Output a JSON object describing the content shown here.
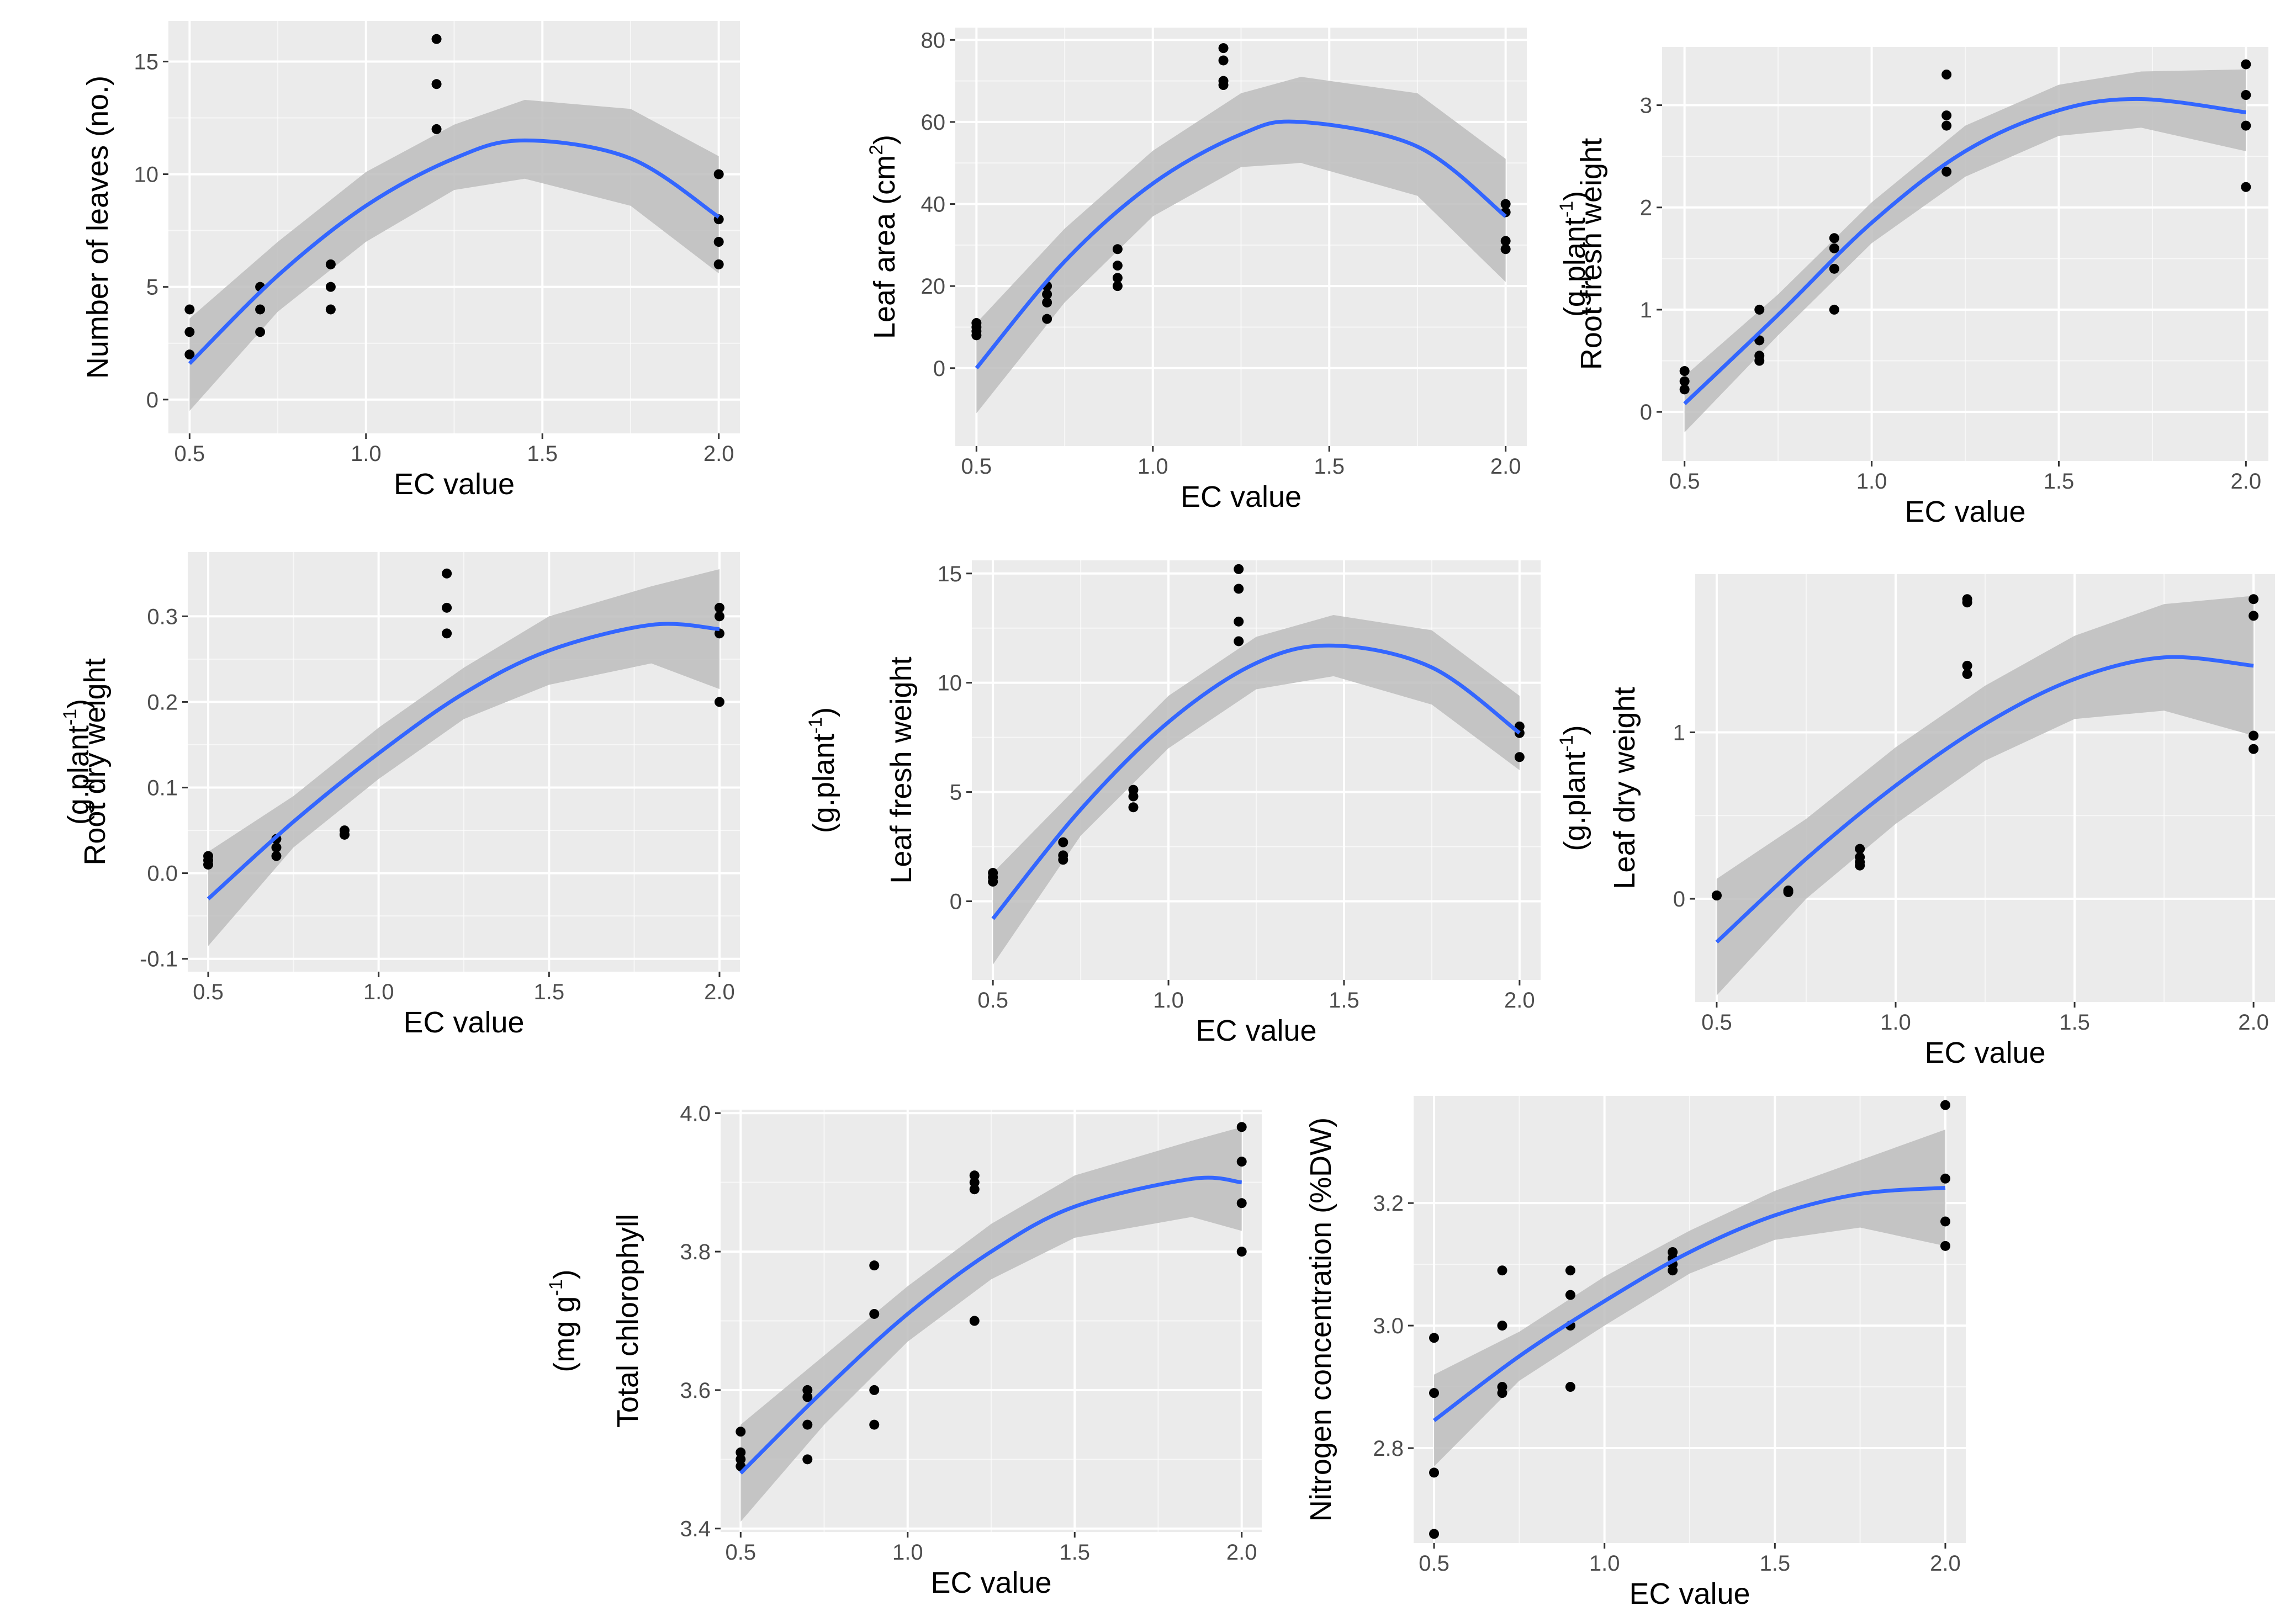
{
  "colors": {
    "panel": "#ebebeb",
    "grid_major": "#ffffff",
    "ribbon": "#bdbdbd",
    "fit_line": "#3366ff",
    "point": "#000000"
  },
  "chart_data": [
    {
      "type": "scatter",
      "id": "leaves",
      "fit": "quadratic-with-ci",
      "title": "",
      "xlabel": "EC value",
      "ylabel": "Number of leaves (no.)",
      "ylabel_unit": null,
      "xlim": [
        0.44,
        2.06
      ],
      "ylim": [
        -1.5,
        16.8
      ],
      "xticks": [
        0.5,
        1.0,
        1.5,
        2.0
      ],
      "xtick_labels": [
        "0.5",
        "1.0",
        "1.5",
        "2.0"
      ],
      "yticks": [
        0,
        5,
        10,
        15
      ],
      "ytick_labels": [
        "0",
        "5",
        "10",
        "15"
      ],
      "x": [
        0.5,
        0.5,
        0.5,
        0.7,
        0.7,
        0.7,
        0.9,
        0.9,
        0.9,
        1.2,
        1.2,
        1.2,
        2.0,
        2.0,
        2.0,
        2.0
      ],
      "y": [
        4,
        3,
        2,
        5,
        4,
        3,
        6,
        5,
        4,
        16,
        14,
        12,
        10,
        8,
        7,
        6
      ],
      "fit_points": [
        [
          0.5,
          1.6
        ],
        [
          0.75,
          5.5
        ],
        [
          1.0,
          8.6
        ],
        [
          1.25,
          10.7
        ],
        [
          1.45,
          11.5
        ],
        [
          1.75,
          10.7
        ],
        [
          2.0,
          8.1
        ]
      ],
      "ci_lower": [
        [
          0.5,
          -0.5
        ],
        [
          0.75,
          3.9
        ],
        [
          1.0,
          7.0
        ],
        [
          1.25,
          9.3
        ],
        [
          1.45,
          9.8
        ],
        [
          1.75,
          8.6
        ],
        [
          2.0,
          5.6
        ]
      ],
      "ci_upper": [
        [
          0.5,
          3.6
        ],
        [
          0.75,
          7.0
        ],
        [
          1.0,
          10.1
        ],
        [
          1.25,
          12.2
        ],
        [
          1.45,
          13.3
        ],
        [
          1.75,
          12.9
        ],
        [
          2.0,
          10.8
        ]
      ]
    },
    {
      "type": "scatter",
      "id": "leaf_area",
      "fit": "quadratic-with-ci",
      "title": "",
      "xlabel": "EC value",
      "ylabel": "Leaf area (cm",
      "ylabel_sup": "2",
      "ylabel_close": ")",
      "ylabel_unit": null,
      "xlim": [
        0.44,
        2.06
      ],
      "ylim": [
        -19,
        83
      ],
      "xticks": [
        0.5,
        1.0,
        1.5,
        2.0
      ],
      "xtick_labels": [
        "0.5",
        "1.0",
        "1.5",
        "2.0"
      ],
      "yticks": [
        0,
        20,
        40,
        60,
        80
      ],
      "ytick_labels": [
        "0",
        "20",
        "40",
        "60",
        "80"
      ],
      "x": [
        0.5,
        0.5,
        0.5,
        0.5,
        0.7,
        0.7,
        0.7,
        0.7,
        0.9,
        0.9,
        0.9,
        0.9,
        1.2,
        1.2,
        1.2,
        1.2,
        2.0,
        2.0,
        2.0,
        2.0
      ],
      "y": [
        11,
        10,
        9,
        8,
        20,
        18,
        16,
        12,
        29,
        25,
        22,
        20,
        78,
        75,
        70,
        69,
        40,
        38,
        31,
        29
      ],
      "fit_points": [
        [
          0.5,
          0
        ],
        [
          0.75,
          26
        ],
        [
          1.0,
          45
        ],
        [
          1.25,
          57
        ],
        [
          1.42,
          60
        ],
        [
          1.75,
          54
        ],
        [
          2.0,
          37
        ]
      ],
      "ci_lower": [
        [
          0.5,
          -11
        ],
        [
          0.75,
          16
        ],
        [
          1.0,
          37
        ],
        [
          1.25,
          49
        ],
        [
          1.42,
          50
        ],
        [
          1.75,
          42
        ],
        [
          2.0,
          21
        ]
      ],
      "ci_upper": [
        [
          0.5,
          11
        ],
        [
          0.75,
          34
        ],
        [
          1.0,
          53
        ],
        [
          1.25,
          67
        ],
        [
          1.42,
          71
        ],
        [
          1.75,
          67
        ],
        [
          2.0,
          51
        ]
      ]
    },
    {
      "type": "scatter",
      "id": "root_fresh",
      "fit": "quadratic-with-ci",
      "title": "",
      "xlabel": "EC value",
      "ylabel": "Root fresh weight",
      "ylabel_unit": "(g.plant",
      "ylabel_unit_sup": "-1",
      "ylabel_unit_close": ")",
      "xlim": [
        0.44,
        2.06
      ],
      "ylim": [
        -0.48,
        3.57
      ],
      "xticks": [
        0.5,
        1.0,
        1.5,
        2.0
      ],
      "xtick_labels": [
        "0.5",
        "1.0",
        "1.5",
        "2.0"
      ],
      "yticks": [
        0,
        1,
        2,
        3
      ],
      "ytick_labels": [
        "0",
        "1",
        "2",
        "3"
      ],
      "x": [
        0.5,
        0.5,
        0.5,
        0.7,
        0.7,
        0.7,
        0.7,
        0.9,
        0.9,
        0.9,
        0.9,
        1.2,
        1.2,
        1.2,
        1.2,
        2.0,
        2.0,
        2.0,
        2.0
      ],
      "y": [
        0.4,
        0.3,
        0.22,
        1.0,
        0.7,
        0.55,
        0.5,
        1.7,
        1.6,
        1.4,
        1.0,
        3.3,
        2.9,
        2.8,
        2.35,
        3.4,
        3.1,
        2.8,
        2.2
      ],
      "fit_points": [
        [
          0.5,
          0.08
        ],
        [
          0.75,
          0.95
        ],
        [
          1.0,
          1.85
        ],
        [
          1.25,
          2.55
        ],
        [
          1.5,
          2.95
        ],
        [
          1.72,
          3.06
        ],
        [
          2.0,
          2.93
        ]
      ],
      "ci_lower": [
        [
          0.5,
          -0.2
        ],
        [
          0.75,
          0.75
        ],
        [
          1.0,
          1.65
        ],
        [
          1.25,
          2.3
        ],
        [
          1.5,
          2.7
        ],
        [
          1.72,
          2.78
        ],
        [
          2.0,
          2.55
        ]
      ],
      "ci_upper": [
        [
          0.5,
          0.35
        ],
        [
          0.75,
          1.15
        ],
        [
          1.0,
          2.05
        ],
        [
          1.25,
          2.8
        ],
        [
          1.5,
          3.2
        ],
        [
          1.72,
          3.33
        ],
        [
          2.0,
          3.35
        ]
      ]
    },
    {
      "type": "scatter",
      "id": "root_dry",
      "fit": "quadratic-with-ci",
      "title": "",
      "xlabel": "EC value",
      "ylabel": "Root dry weight",
      "ylabel_unit": "(g.plant",
      "ylabel_unit_sup": "-1",
      "ylabel_unit_close": ")",
      "xlim": [
        0.44,
        2.06
      ],
      "ylim": [
        -0.115,
        0.375
      ],
      "xticks": [
        0.5,
        1.0,
        1.5,
        2.0
      ],
      "xtick_labels": [
        "0.5",
        "1.0",
        "1.5",
        "2.0"
      ],
      "yticks": [
        -0.1,
        0.0,
        0.1,
        0.2,
        0.3
      ],
      "ytick_labels": [
        "-0.1",
        "0.0",
        "0.1",
        "0.2",
        "0.3"
      ],
      "x": [
        0.5,
        0.5,
        0.5,
        0.7,
        0.7,
        0.7,
        0.9,
        0.9,
        0.9,
        1.2,
        1.2,
        1.2,
        2.0,
        2.0,
        2.0,
        2.0
      ],
      "y": [
        0.02,
        0.015,
        0.01,
        0.04,
        0.03,
        0.02,
        0.05,
        0.045,
        0.045,
        0.35,
        0.31,
        0.28,
        0.31,
        0.3,
        0.28,
        0.2
      ],
      "fit_points": [
        [
          0.5,
          -0.03
        ],
        [
          0.75,
          0.06
        ],
        [
          1.0,
          0.14
        ],
        [
          1.25,
          0.21
        ],
        [
          1.5,
          0.26
        ],
        [
          1.8,
          0.29
        ],
        [
          2.0,
          0.285
        ]
      ],
      "ci_lower": [
        [
          0.5,
          -0.085
        ],
        [
          0.75,
          0.03
        ],
        [
          1.0,
          0.11
        ],
        [
          1.25,
          0.18
        ],
        [
          1.5,
          0.22
        ],
        [
          1.8,
          0.245
        ],
        [
          2.0,
          0.215
        ]
      ],
      "ci_upper": [
        [
          0.5,
          0.025
        ],
        [
          0.75,
          0.09
        ],
        [
          1.0,
          0.17
        ],
        [
          1.25,
          0.24
        ],
        [
          1.5,
          0.3
        ],
        [
          1.8,
          0.335
        ],
        [
          2.0,
          0.355
        ]
      ]
    },
    {
      "type": "scatter",
      "id": "leaf_fresh",
      "fit": "quadratic-with-ci",
      "title": "",
      "xlabel": "EC value",
      "ylabel": "Leaf fresh weight",
      "ylabel_unit": "(g.plant",
      "ylabel_unit_sup": "-1",
      "ylabel_unit_close": ")",
      "xlim": [
        0.44,
        2.06
      ],
      "ylim": [
        -3.6,
        15.6
      ],
      "xticks": [
        0.5,
        1.0,
        1.5,
        2.0
      ],
      "xtick_labels": [
        "0.5",
        "1.0",
        "1.5",
        "2.0"
      ],
      "yticks": [
        0,
        5,
        10,
        15
      ],
      "ytick_labels": [
        "0",
        "5",
        "10",
        "15"
      ],
      "x": [
        0.5,
        0.5,
        0.5,
        0.7,
        0.7,
        0.7,
        0.9,
        0.9,
        0.9,
        1.2,
        1.2,
        1.2,
        1.2,
        2.0,
        2.0,
        2.0
      ],
      "y": [
        1.3,
        1.1,
        0.9,
        2.7,
        2.1,
        1.9,
        5.1,
        4.8,
        4.3,
        15.2,
        14.3,
        12.8,
        11.9,
        8.0,
        7.7,
        6.6
      ],
      "fit_points": [
        [
          0.5,
          -0.8
        ],
        [
          0.75,
          4.2
        ],
        [
          1.0,
          8.2
        ],
        [
          1.25,
          10.9
        ],
        [
          1.47,
          11.7
        ],
        [
          1.75,
          10.7
        ],
        [
          2.0,
          7.7
        ]
      ],
      "ci_lower": [
        [
          0.5,
          -2.9
        ],
        [
          0.75,
          3.0
        ],
        [
          1.0,
          7.0
        ],
        [
          1.25,
          9.7
        ],
        [
          1.47,
          10.3
        ],
        [
          1.75,
          9.0
        ],
        [
          2.0,
          6.0
        ]
      ],
      "ci_upper": [
        [
          0.5,
          1.3
        ],
        [
          0.75,
          5.4
        ],
        [
          1.0,
          9.4
        ],
        [
          1.25,
          12.1
        ],
        [
          1.47,
          13.1
        ],
        [
          1.75,
          12.4
        ],
        [
          2.0,
          9.4
        ]
      ]
    },
    {
      "type": "scatter",
      "id": "leaf_dry",
      "fit": "quadratic-with-ci",
      "title": "",
      "xlabel": "EC value",
      "ylabel": "Leaf dry weight",
      "ylabel_unit": "(g.plant",
      "ylabel_unit_sup": "-1",
      "ylabel_unit_close": ")",
      "xlim": [
        0.44,
        2.06
      ],
      "ylim": [
        -0.62,
        1.95
      ],
      "xticks": [
        0.5,
        1.0,
        1.5,
        2.0
      ],
      "xtick_labels": [
        "0.5",
        "1.0",
        "1.5",
        "2.0"
      ],
      "yticks": [
        0,
        1
      ],
      "ytick_labels": [
        "0",
        "1"
      ],
      "x": [
        0.5,
        0.5,
        0.7,
        0.7,
        0.9,
        0.9,
        0.9,
        0.9,
        1.2,
        1.2,
        1.2,
        1.2,
        2.0,
        2.0,
        2.0,
        2.0
      ],
      "y": [
        0.02,
        0.02,
        0.05,
        0.04,
        0.3,
        0.25,
        0.22,
        0.2,
        1.8,
        1.78,
        1.4,
        1.35,
        1.8,
        1.7,
        0.98,
        0.9
      ],
      "fit_points": [
        [
          0.5,
          -0.26
        ],
        [
          0.75,
          0.24
        ],
        [
          1.0,
          0.68
        ],
        [
          1.25,
          1.05
        ],
        [
          1.5,
          1.32
        ],
        [
          1.75,
          1.45
        ],
        [
          2.0,
          1.4
        ]
      ],
      "ci_lower": [
        [
          0.5,
          -0.58
        ],
        [
          0.75,
          0.0
        ],
        [
          1.0,
          0.45
        ],
        [
          1.25,
          0.83
        ],
        [
          1.5,
          1.08
        ],
        [
          1.75,
          1.13
        ],
        [
          2.0,
          0.98
        ]
      ],
      "ci_upper": [
        [
          0.5,
          0.12
        ],
        [
          0.75,
          0.48
        ],
        [
          1.0,
          0.91
        ],
        [
          1.25,
          1.28
        ],
        [
          1.5,
          1.58
        ],
        [
          1.75,
          1.77
        ],
        [
          2.0,
          1.82
        ]
      ]
    },
    {
      "type": "scatter",
      "id": "chlorophyll",
      "fit": "quadratic-with-ci",
      "title": "",
      "xlabel": "EC value",
      "ylabel": "Total chlorophyll",
      "ylabel_unit": "(mg g",
      "ylabel_unit_sup": "-1",
      "ylabel_unit_close": ")",
      "xlim": [
        0.44,
        2.06
      ],
      "ylim": [
        3.395,
        4.005
      ],
      "xticks": [
        0.5,
        1.0,
        1.5,
        2.0
      ],
      "xtick_labels": [
        "0.5",
        "1.0",
        "1.5",
        "2.0"
      ],
      "yticks": [
        3.4,
        3.6,
        3.8,
        4.0
      ],
      "ytick_labels": [
        "3.4",
        "3.6",
        "3.8",
        "4.0"
      ],
      "x": [
        0.5,
        0.5,
        0.5,
        0.5,
        0.7,
        0.7,
        0.7,
        0.7,
        0.9,
        0.9,
        0.9,
        0.9,
        1.2,
        1.2,
        1.2,
        1.2,
        2.0,
        2.0,
        2.0,
        2.0
      ],
      "y": [
        3.54,
        3.51,
        3.5,
        3.49,
        3.6,
        3.59,
        3.55,
        3.5,
        3.78,
        3.71,
        3.6,
        3.55,
        3.91,
        3.9,
        3.89,
        3.7,
        3.98,
        3.93,
        3.87,
        3.8
      ],
      "fit_points": [
        [
          0.5,
          3.48
        ],
        [
          0.75,
          3.6
        ],
        [
          1.0,
          3.71
        ],
        [
          1.25,
          3.8
        ],
        [
          1.5,
          3.865
        ],
        [
          1.85,
          3.905
        ],
        [
          2.0,
          3.9
        ]
      ],
      "ci_lower": [
        [
          0.5,
          3.41
        ],
        [
          0.75,
          3.55
        ],
        [
          1.0,
          3.67
        ],
        [
          1.25,
          3.76
        ],
        [
          1.5,
          3.82
        ],
        [
          1.85,
          3.85
        ],
        [
          2.0,
          3.83
        ]
      ],
      "ci_upper": [
        [
          0.5,
          3.55
        ],
        [
          0.75,
          3.65
        ],
        [
          1.0,
          3.75
        ],
        [
          1.25,
          3.84
        ],
        [
          1.5,
          3.91
        ],
        [
          1.85,
          3.96
        ],
        [
          2.0,
          3.98
        ]
      ]
    },
    {
      "type": "scatter",
      "id": "nitrogen",
      "fit": "quadratic-with-ci",
      "title": "",
      "xlabel": "EC value",
      "ylabel": "Nitrogen concentration (%DW)",
      "ylabel_unit": null,
      "xlim": [
        0.44,
        2.06
      ],
      "ylim": [
        2.645,
        3.375
      ],
      "xticks": [
        0.5,
        1.0,
        1.5,
        2.0
      ],
      "xtick_labels": [
        "0.5",
        "1.0",
        "1.5",
        "2.0"
      ],
      "yticks": [
        2.8,
        3.0,
        3.2
      ],
      "ytick_labels": [
        "2.8",
        "3.0",
        "3.2"
      ],
      "x": [
        0.5,
        0.5,
        0.5,
        0.5,
        0.7,
        0.7,
        0.7,
        0.7,
        0.9,
        0.9,
        0.9,
        0.9,
        1.2,
        1.2,
        1.2,
        1.2,
        2.0,
        2.0,
        2.0,
        2.0
      ],
      "y": [
        2.98,
        2.89,
        2.76,
        2.66,
        3.09,
        3.0,
        2.9,
        2.89,
        3.09,
        3.05,
        3.0,
        2.9,
        3.12,
        3.11,
        3.1,
        3.09,
        3.36,
        3.24,
        3.17,
        3.13
      ],
      "fit_points": [
        [
          0.5,
          2.845
        ],
        [
          0.75,
          2.95
        ],
        [
          1.0,
          3.04
        ],
        [
          1.25,
          3.12
        ],
        [
          1.5,
          3.18
        ],
        [
          1.75,
          3.215
        ],
        [
          2.0,
          3.225
        ]
      ],
      "ci_lower": [
        [
          0.5,
          2.77
        ],
        [
          0.75,
          2.91
        ],
        [
          1.0,
          3.0
        ],
        [
          1.25,
          3.085
        ],
        [
          1.5,
          3.14
        ],
        [
          1.75,
          3.16
        ],
        [
          2.0,
          3.13
        ]
      ],
      "ci_upper": [
        [
          0.5,
          2.92
        ],
        [
          0.75,
          2.99
        ],
        [
          1.0,
          3.08
        ],
        [
          1.25,
          3.155
        ],
        [
          1.5,
          3.22
        ],
        [
          1.75,
          3.27
        ],
        [
          2.0,
          3.32
        ]
      ]
    }
  ]
}
